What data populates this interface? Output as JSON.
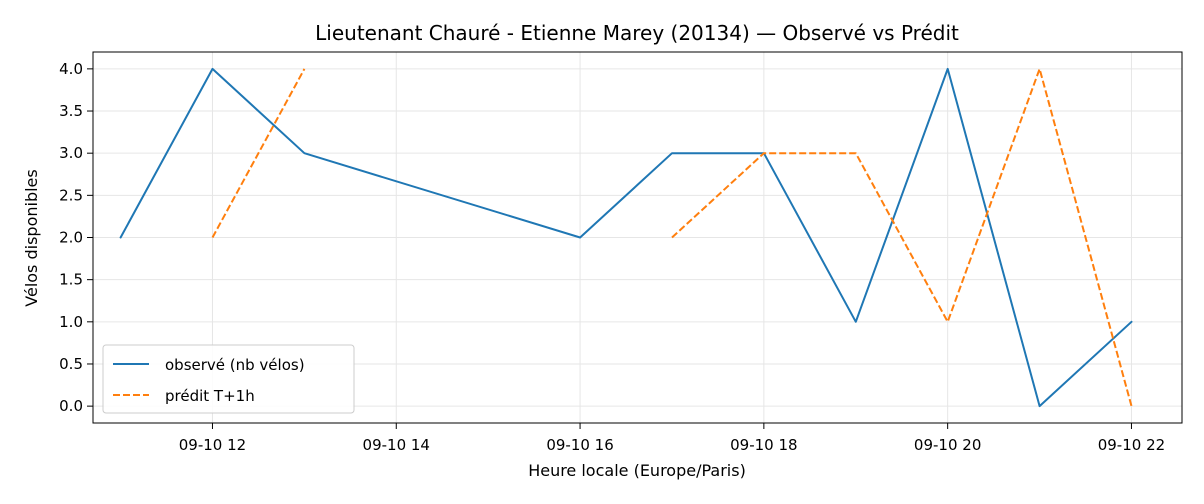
{
  "chart_data": {
    "type": "line",
    "title": "Lieutenant Chauré - Etienne Marey (20134) — Observé vs Prédit",
    "xlabel": "Heure locale (Europe/Paris)",
    "ylabel": "Vélos disponibles",
    "x_tick_labels": [
      "09-10 12",
      "09-10 14",
      "09-10 16",
      "09-10 18",
      "09-10 20",
      "09-10 22"
    ],
    "x_tick_values": [
      12,
      14,
      16,
      18,
      20,
      22
    ],
    "xlim": [
      10.7,
      22.55
    ],
    "y_tick_labels": [
      "0.0",
      "0.5",
      "1.0",
      "1.5",
      "2.0",
      "2.5",
      "3.0",
      "3.5",
      "4.0"
    ],
    "y_tick_values": [
      0,
      0.5,
      1,
      1.5,
      2,
      2.5,
      3,
      3.5,
      4
    ],
    "ylim": [
      -0.2,
      4.2
    ],
    "grid": true,
    "legend_position": "lower-left",
    "series": [
      {
        "name": "observé (nb vélos)",
        "style": "solid",
        "color": "#1f77b4",
        "points": [
          [
            11,
            2
          ],
          [
            12,
            4
          ],
          [
            13,
            3
          ],
          [
            16,
            2
          ],
          [
            17,
            3
          ],
          [
            18,
            3
          ],
          [
            19,
            1
          ],
          [
            20,
            4
          ],
          [
            21,
            0
          ],
          [
            22,
            1
          ]
        ]
      },
      {
        "name": "prédit T+1h",
        "style": "dashed",
        "color": "#ff7f0e",
        "segments": [
          [
            [
              12,
              2
            ],
            [
              13,
              4
            ]
          ],
          [
            [
              17,
              2
            ],
            [
              18,
              3
            ],
            [
              19,
              3
            ],
            [
              20,
              1
            ],
            [
              21,
              4
            ],
            [
              22,
              0
            ]
          ]
        ]
      }
    ]
  }
}
